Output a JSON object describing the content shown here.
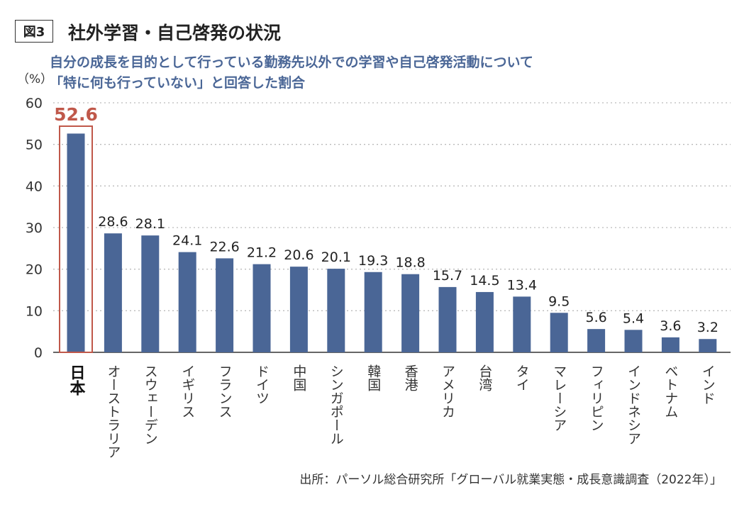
{
  "figure_label": "図3",
  "title": "社外学習・自己啓発の状況",
  "subtitle_lines": [
    "自分の成長を目的として行っている勤務先以外での学習や自己啓発活動について",
    "「特に何も行っていない」と回答した割合"
  ],
  "source": "出所：パーソル総合研究所「グローバル就業実態・成長意識調査（2022年）」",
  "chart_data": {
    "type": "bar",
    "unit_label": "（%）",
    "categories": [
      "日本",
      "オーストラリア",
      "スウェーデン",
      "イギリス",
      "フランス",
      "ドイツ",
      "中国",
      "シンガポール",
      "韓国",
      "香港",
      "アメリカ",
      "台湾",
      "タイ",
      "マレーシア",
      "フィリピン",
      "インドネシア",
      "ベトナム",
      "インド"
    ],
    "values": [
      52.6,
      28.6,
      28.1,
      24.1,
      22.6,
      21.2,
      20.6,
      20.1,
      19.3,
      18.8,
      15.7,
      14.5,
      13.4,
      9.5,
      5.6,
      5.4,
      3.6,
      3.2
    ],
    "value_labels": [
      "52.6",
      "28.6",
      "28.1",
      "24.1",
      "22.6",
      "21.2",
      "20.6",
      "20.1",
      "19.3",
      "18.8",
      "15.7",
      "14.5",
      "13.4",
      "9.5",
      "5.6",
      "5.4",
      "3.6",
      "3.2"
    ],
    "yticks": [
      "0",
      "10",
      "20",
      "30",
      "40",
      "50",
      "60"
    ],
    "ylim": [
      0,
      60
    ],
    "grid": true,
    "highlight_index": 0,
    "colors": {
      "bar": "#4a6696",
      "highlight": "#c0584a",
      "grid": "#bbbbbb"
    }
  }
}
